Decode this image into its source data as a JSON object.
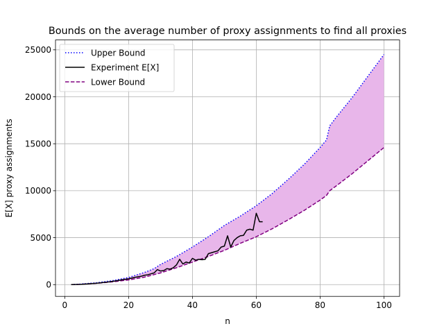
{
  "chart_data": {
    "type": "line",
    "title": "Bounds on the average number of proxy assignments to find all proxies",
    "xlabel": "n",
    "ylabel": "E[X] proxy assignments",
    "xlim": [
      -2.9,
      104.9
    ],
    "ylim": [
      -1250,
      26050
    ],
    "xticks": [
      0,
      20,
      40,
      60,
      80,
      100
    ],
    "xtick_labels": [
      "0",
      "20",
      "40",
      "60",
      "80",
      "100"
    ],
    "yticks": [
      0,
      5000,
      10000,
      15000,
      20000,
      25000
    ],
    "ytick_labels": [
      "0",
      "5000",
      "10000",
      "15000",
      "20000",
      "25000"
    ],
    "grid": true,
    "legend_position": "upper-left",
    "fill_between": {
      "lower": "Lower Bound",
      "upper": "Upper Bound",
      "color": "#e8b6ea"
    },
    "series": [
      {
        "name": "Upper Bound",
        "style": "dotted",
        "color": "#0000ff",
        "x": [
          2,
          5,
          10,
          15,
          20,
          25,
          28,
          30,
          35,
          40,
          45,
          50,
          55,
          60,
          65,
          70,
          75,
          80,
          82,
          83,
          85,
          90,
          95,
          100
        ],
        "values": [
          0,
          60,
          200,
          430,
          760,
          1300,
          1700,
          2150,
          3000,
          4000,
          5100,
          6300,
          7300,
          8400,
          9700,
          11200,
          12800,
          14600,
          15400,
          16900,
          17800,
          19900,
          22200,
          24500
        ]
      },
      {
        "name": "Experiment E[X]",
        "style": "solid",
        "color": "#000000",
        "x": [
          2,
          5,
          8,
          10,
          12,
          14,
          15,
          16,
          18,
          20,
          22,
          24,
          25,
          26,
          27,
          28,
          29,
          30,
          31,
          32,
          33,
          34,
          35,
          36,
          37,
          38,
          39,
          40,
          41,
          42,
          43,
          44,
          45,
          46,
          47,
          48,
          49,
          50,
          51,
          52,
          53,
          54,
          55,
          56,
          57,
          58,
          59,
          60,
          61,
          62
        ],
        "values": [
          0,
          30,
          100,
          150,
          220,
          300,
          350,
          400,
          520,
          620,
          780,
          900,
          1000,
          1050,
          1150,
          1250,
          1600,
          1450,
          1500,
          1700,
          1650,
          1800,
          2100,
          2700,
          2200,
          2400,
          2300,
          2800,
          2600,
          2700,
          2650,
          2700,
          3300,
          3400,
          3500,
          3600,
          4000,
          4100,
          5200,
          4000,
          4700,
          5000,
          5200,
          5250,
          5800,
          5900,
          5800,
          7600,
          6700,
          6700
        ]
      },
      {
        "name": "Lower Bound",
        "style": "dashed",
        "color": "#800080",
        "x": [
          2,
          5,
          10,
          15,
          20,
          25,
          30,
          35,
          40,
          45,
          50,
          55,
          60,
          65,
          70,
          75,
          80,
          82,
          83,
          85,
          90,
          95,
          100
        ],
        "values": [
          0,
          40,
          140,
          300,
          500,
          800,
          1250,
          1800,
          2400,
          3000,
          3650,
          4400,
          5100,
          5950,
          6900,
          7900,
          9000,
          9500,
          10000,
          10500,
          11800,
          13200,
          14600
        ]
      }
    ]
  }
}
